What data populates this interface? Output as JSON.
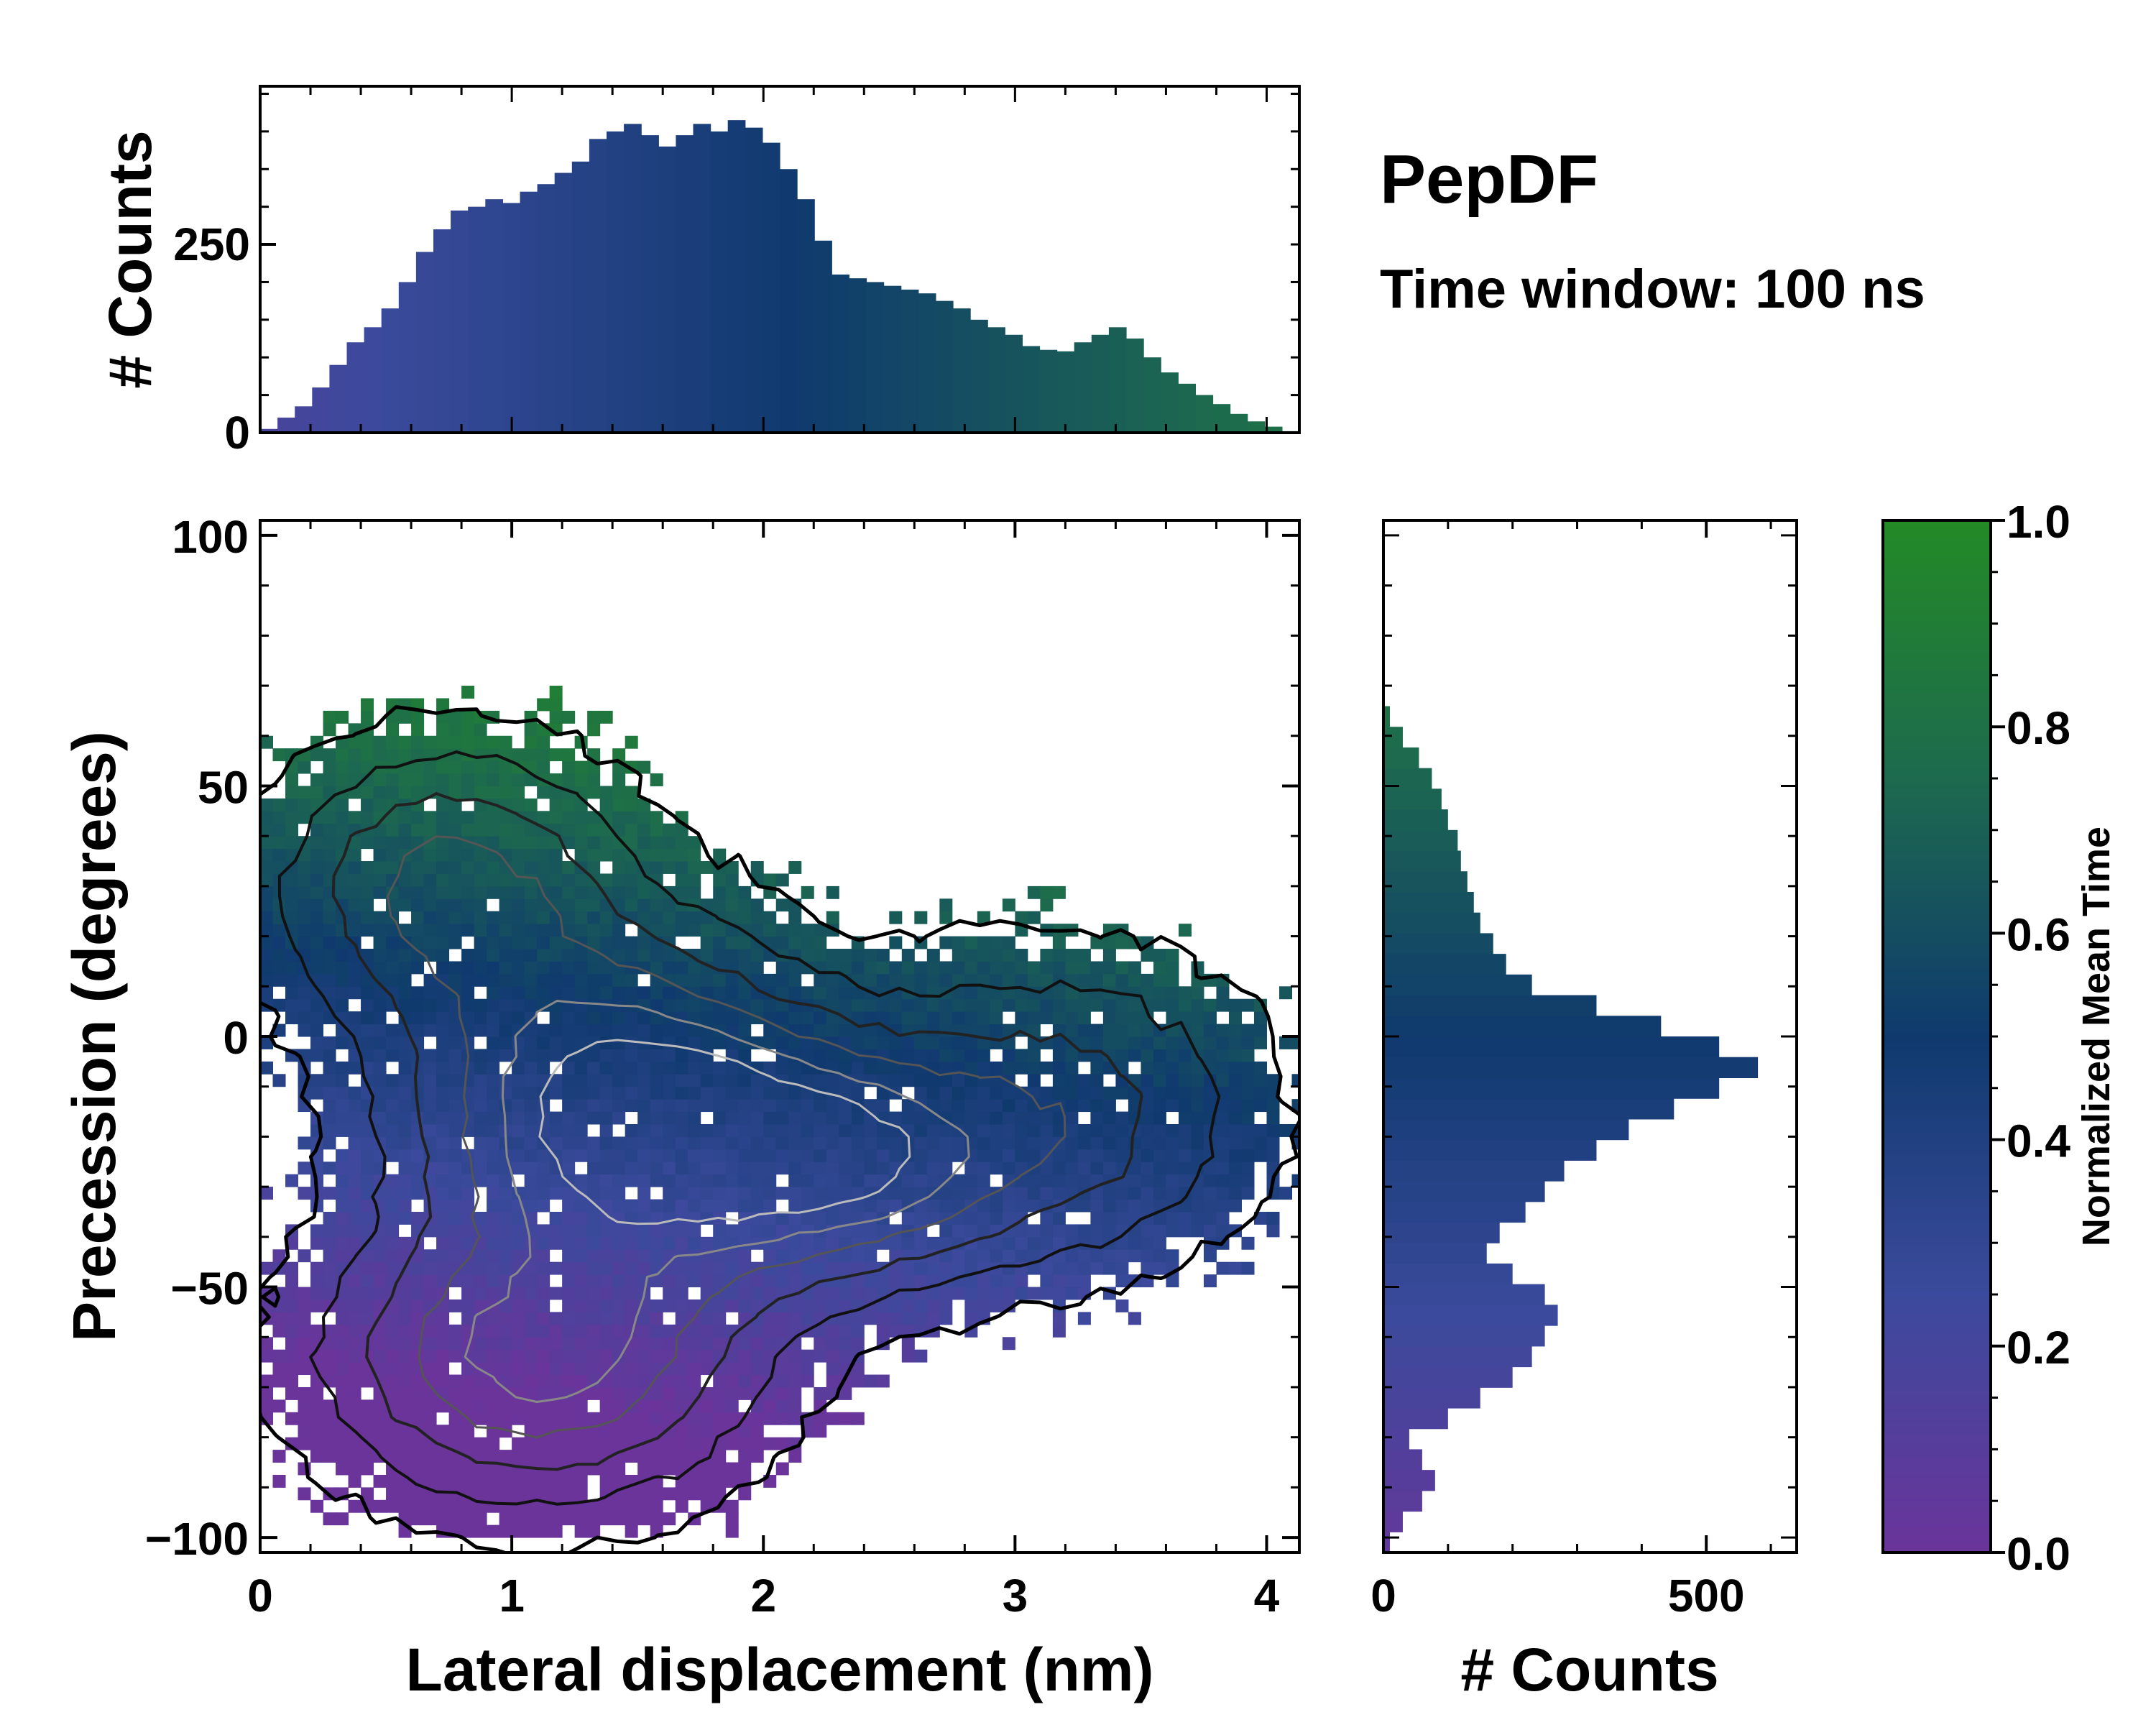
{
  "chart_data": {
    "type": "heatmap",
    "title": "PepDF",
    "subtitle": "Time window: 100 ns",
    "colorscale": [
      "#6a349b",
      "#3b4a9c",
      "#0f3a6e",
      "#1d6a4e",
      "#238a26"
    ],
    "joint": {
      "xlabel": "Lateral displacement (nm)",
      "ylabel": "Precession (degrees)",
      "xlim": [
        0,
        4.13
      ],
      "ylim": [
        -103,
        103
      ],
      "xticks": [
        "0",
        "1",
        "2",
        "3",
        "4"
      ],
      "yticks": [
        "100",
        "50",
        "0",
        "−50",
        "−100"
      ],
      "xtick_values": [
        0,
        1,
        2,
        3,
        4
      ],
      "ytick_values": [
        100,
        50,
        0,
        -50,
        -100
      ],
      "grid": false,
      "density_modes": [
        {
          "x": 1.45,
          "y": -15,
          "sx": 0.55,
          "sy": 22,
          "w": 1.0
        },
        {
          "x": 2.3,
          "y": -25,
          "sx": 0.45,
          "sy": 15,
          "w": 0.7
        },
        {
          "x": 1.1,
          "y": -65,
          "sx": 0.55,
          "sy": 18,
          "w": 0.75
        },
        {
          "x": 0.75,
          "y": 30,
          "sx": 0.45,
          "sy": 18,
          "w": 0.6
        },
        {
          "x": 3.2,
          "y": -15,
          "sx": 0.5,
          "sy": 20,
          "w": 0.45
        }
      ]
    },
    "top_histogram": {
      "ylabel": "# Counts",
      "yticks": [
        "0",
        "250"
      ],
      "ytick_values": [
        0,
        250
      ],
      "ylim": [
        0,
        460
      ],
      "bins_x_range": [
        0,
        4.13
      ],
      "values": [
        5,
        20,
        35,
        60,
        90,
        120,
        140,
        165,
        200,
        240,
        270,
        295,
        300,
        310,
        305,
        320,
        330,
        345,
        360,
        390,
        400,
        410,
        395,
        380,
        395,
        410,
        400,
        415,
        405,
        385,
        350,
        310,
        255,
        210,
        205,
        200,
        195,
        190,
        185,
        175,
        165,
        150,
        140,
        130,
        115,
        110,
        108,
        120,
        130,
        140,
        125,
        100,
        80,
        65,
        50,
        38,
        25,
        15,
        8,
        2
      ]
    },
    "right_histogram": {
      "xlabel": "# Counts",
      "xticks": [
        "0",
        "500"
      ],
      "xtick_values": [
        0,
        500
      ],
      "xlim": [
        0,
        640
      ],
      "bins_y_range": [
        -103,
        103
      ],
      "values_bottom_to_top": [
        10,
        30,
        60,
        80,
        60,
        40,
        100,
        150,
        200,
        230,
        250,
        270,
        250,
        200,
        160,
        180,
        220,
        250,
        280,
        330,
        380,
        450,
        520,
        580,
        520,
        430,
        330,
        230,
        190,
        170,
        150,
        140,
        130,
        120,
        115,
        100,
        90,
        75,
        55,
        30,
        10,
        0,
        0,
        0,
        0,
        0,
        0,
        0,
        0,
        0
      ]
    },
    "colorbar": {
      "label": "Normalized Mean Time",
      "range": [
        0,
        1
      ],
      "ticks": [
        "0.0",
        "0.2",
        "0.4",
        "0.6",
        "0.8",
        "1.0"
      ],
      "tick_values": [
        0,
        0.2,
        0.4,
        0.6,
        0.8,
        1
      ]
    }
  }
}
